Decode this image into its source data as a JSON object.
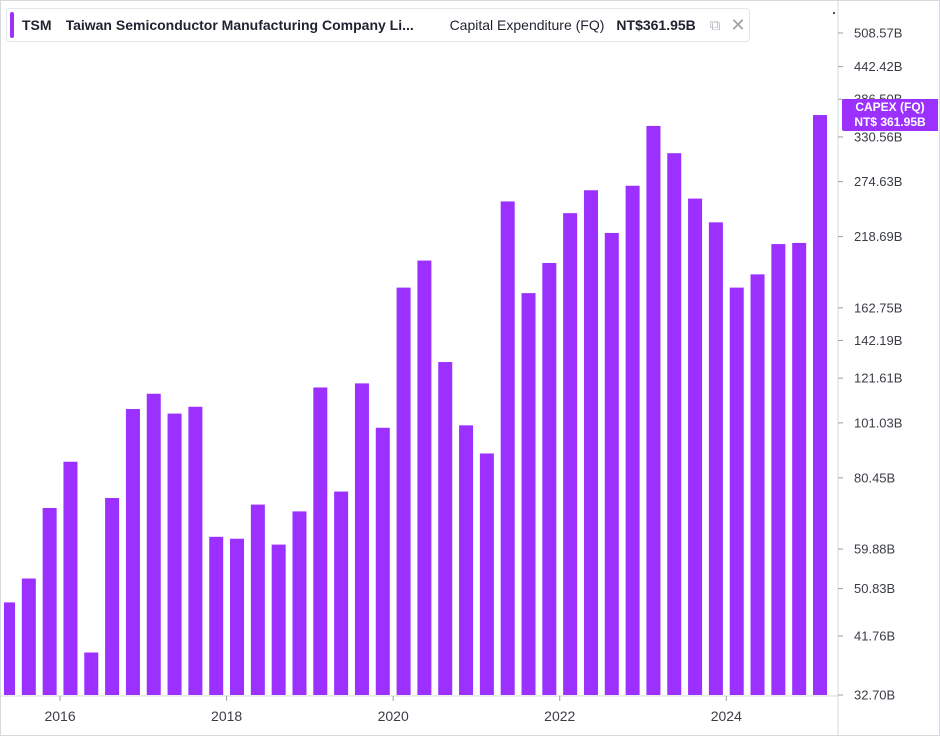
{
  "legend": {
    "ticker": "TSM",
    "company": "Taiwan Semiconductor Manufacturing Company Li...",
    "metric": "Capital Expenditure (FQ)",
    "value": "NT$361.95B",
    "layers_icon": "layers-icon",
    "close_icon": "close-icon",
    "close_glyph": "✕",
    "layers_glyph": "⧉"
  },
  "price_tag": {
    "line1": "CAPEX (FQ)",
    "line2": "NT$ 361.95B"
  },
  "colors": {
    "bar": "#9b30ff",
    "accent": "#9b30ff",
    "axis_text": "#3a3d46",
    "grid": "#e6e8ec"
  },
  "chart_data": {
    "type": "bar",
    "title": "",
    "xlabel": "",
    "ylabel": "",
    "y_scale": "log",
    "ylim": [
      32.7,
      600
    ],
    "y_tick_labels": [
      "508.57B",
      "442.42B",
      "386.50B",
      "330.56B",
      "274.63B",
      "218.69B",
      "162.75B",
      "142.19B",
      "121.61B",
      "101.03B",
      "80.45B",
      "59.88B",
      "50.83B",
      "41.76B",
      "32.70B"
    ],
    "y_tick_values": [
      508.57,
      442.42,
      386.5,
      330.56,
      274.63,
      218.69,
      162.75,
      142.19,
      121.61,
      101.03,
      80.45,
      59.88,
      50.83,
      41.76,
      32.7
    ],
    "x_tick_labels": [
      "2016",
      "2018",
      "2020",
      "2022",
      "2024"
    ],
    "x_tick_dates": [
      "2016-01-01",
      "2018-01-01",
      "2020-01-01",
      "2022-01-01",
      "2024-01-01"
    ],
    "series": [
      {
        "unit": "B NTD",
        "x": [
          "2015-Q2",
          "2015-Q3",
          "2015-Q4",
          "2016-Q1",
          "2016-Q2",
          "2016-Q3",
          "2016-Q4",
          "2017-Q1",
          "2017-Q2",
          "2017-Q3",
          "2017-Q4",
          "2018-Q1",
          "2018-Q2",
          "2018-Q3",
          "2018-Q4",
          "2019-Q1",
          "2019-Q2",
          "2019-Q3",
          "2019-Q4",
          "2020-Q1",
          "2020-Q2",
          "2020-Q3",
          "2020-Q4",
          "2021-Q1",
          "2021-Q2",
          "2021-Q3",
          "2021-Q4",
          "2022-Q1",
          "2022-Q2",
          "2022-Q3",
          "2022-Q4",
          "2023-Q1",
          "2023-Q2",
          "2023-Q3",
          "2023-Q4",
          "2024-Q1",
          "2024-Q2",
          "2024-Q3",
          "2024-Q4",
          "2025-Q1"
        ],
        "values": [
          48,
          53,
          71,
          86,
          39,
          74,
          107,
          114,
          105,
          108,
          63,
          62.5,
          72,
          61,
          70,
          117,
          76,
          119,
          99,
          177,
          198,
          130,
          100,
          89,
          253,
          173,
          196,
          241,
          265,
          222,
          270,
          346,
          309,
          256,
          232,
          177,
          187,
          212,
          213,
          361.95
        ]
      }
    ]
  }
}
